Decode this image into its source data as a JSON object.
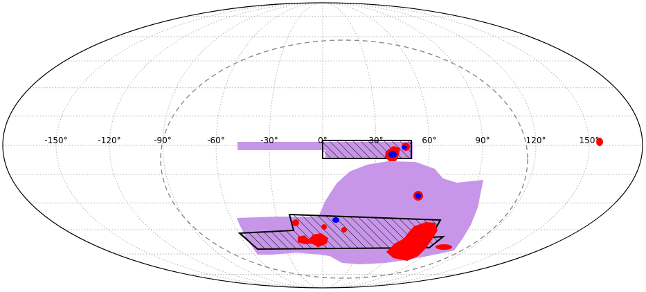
{
  "projection": "mollweide",
  "colors": {
    "footprint": "#c796e8",
    "overlay": "#ff0000",
    "core": "#0000ff",
    "outline": "#000000",
    "graticule": "#b0b0b0",
    "dashed_boundary": "#8a8a8a",
    "background": "#ffffff"
  },
  "longitude_ticks": [
    {
      "value": -150,
      "label": "-150°"
    },
    {
      "value": -120,
      "label": "-120°"
    },
    {
      "value": -90,
      "label": "-90°"
    },
    {
      "value": -60,
      "label": "-60°"
    },
    {
      "value": -30,
      "label": "-30°"
    },
    {
      "value": 0,
      "label": "0°"
    },
    {
      "value": 30,
      "label": "30°"
    },
    {
      "value": 60,
      "label": "60°"
    },
    {
      "value": 90,
      "label": "90°"
    },
    {
      "value": 120,
      "label": "120°"
    },
    {
      "value": 150,
      "label": "150°"
    }
  ],
  "graticule": {
    "longitude_step": 30,
    "latitude_step": 15,
    "style": "dotted"
  }
}
